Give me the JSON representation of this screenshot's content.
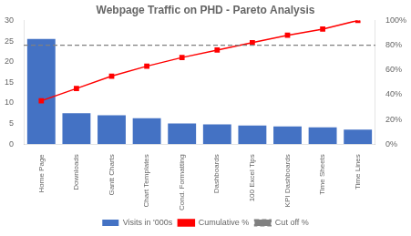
{
  "chart_data": {
    "type": "bar",
    "title": "Webpage Traffic on PHD - Pareto Analysis",
    "categories": [
      "Home Page",
      "Downloads",
      "Gantt Charts",
      "Chart Templates",
      "Cond. Formatting",
      "Dashboards",
      "100 Excel Tips",
      "KPI Dashboards",
      "Time Sheets",
      "Time Lines"
    ],
    "series": [
      {
        "name": "Visits in '000s",
        "type": "bar",
        "color": "#4472C4",
        "values": [
          25.5,
          7.5,
          7.0,
          6.3,
          5.0,
          4.8,
          4.5,
          4.3,
          4.1,
          3.5
        ]
      },
      {
        "name": "Cumulative %",
        "type": "line",
        "axis": "y2",
        "color": "#FF0000",
        "marker": "square",
        "line_style": "solid",
        "values": [
          35,
          45,
          55,
          63,
          70,
          76,
          82,
          88,
          93,
          100
        ]
      },
      {
        "name": "Cut off %",
        "type": "hline",
        "axis": "y2",
        "color": "#808080",
        "line_style": "dashed",
        "value": 80
      }
    ],
    "ylim": [
      0,
      30
    ],
    "yticks": [
      0,
      5,
      10,
      15,
      20,
      25,
      30
    ],
    "y2lim": [
      0,
      100
    ],
    "y2ticks": [
      {
        "value": 0,
        "label": "0%"
      },
      {
        "value": 20,
        "label": "20%"
      },
      {
        "value": 40,
        "label": "40%"
      },
      {
        "value": 60,
        "label": "60%"
      },
      {
        "value": 80,
        "label": "80%"
      },
      {
        "value": 100,
        "label": "100%"
      }
    ],
    "grid": false,
    "legend": "bottom"
  }
}
